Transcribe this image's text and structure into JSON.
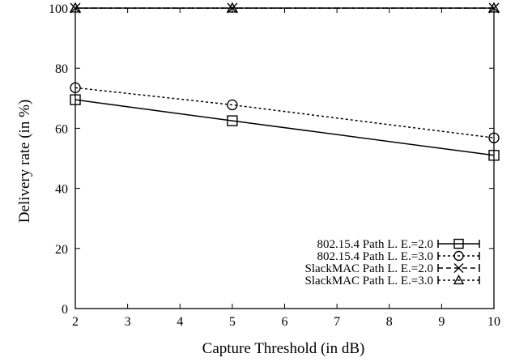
{
  "chart_data": {
    "type": "line",
    "title": "",
    "xlabel": "Capture Threshold (in dB)",
    "ylabel": "Delivery rate (in %)",
    "xlim": [
      2,
      10
    ],
    "ylim": [
      0,
      100
    ],
    "xticks": [
      2,
      3,
      4,
      5,
      6,
      7,
      8,
      9,
      10
    ],
    "yticks": [
      0,
      20,
      40,
      60,
      80,
      100
    ],
    "grid": false,
    "legend_position": "bottom-right",
    "x": [
      2,
      5,
      10
    ],
    "series": [
      {
        "name": "802.15.4 Path L. E.=2.0",
        "values": [
          69.5,
          62.5,
          51.0
        ],
        "marker": "square",
        "line": "solid"
      },
      {
        "name": "802.15.4 Path L. E.=3.0",
        "values": [
          73.5,
          67.8,
          56.8
        ],
        "marker": "circle",
        "line": "dotted"
      },
      {
        "name": "SlackMAC Path L. E.=2.0",
        "values": [
          100,
          100,
          100
        ],
        "marker": "x",
        "line": "dashed"
      },
      {
        "name": "SlackMAC Path L. E.=3.0",
        "values": [
          100,
          100,
          100
        ],
        "marker": "triangle",
        "line": "dotted"
      }
    ]
  }
}
